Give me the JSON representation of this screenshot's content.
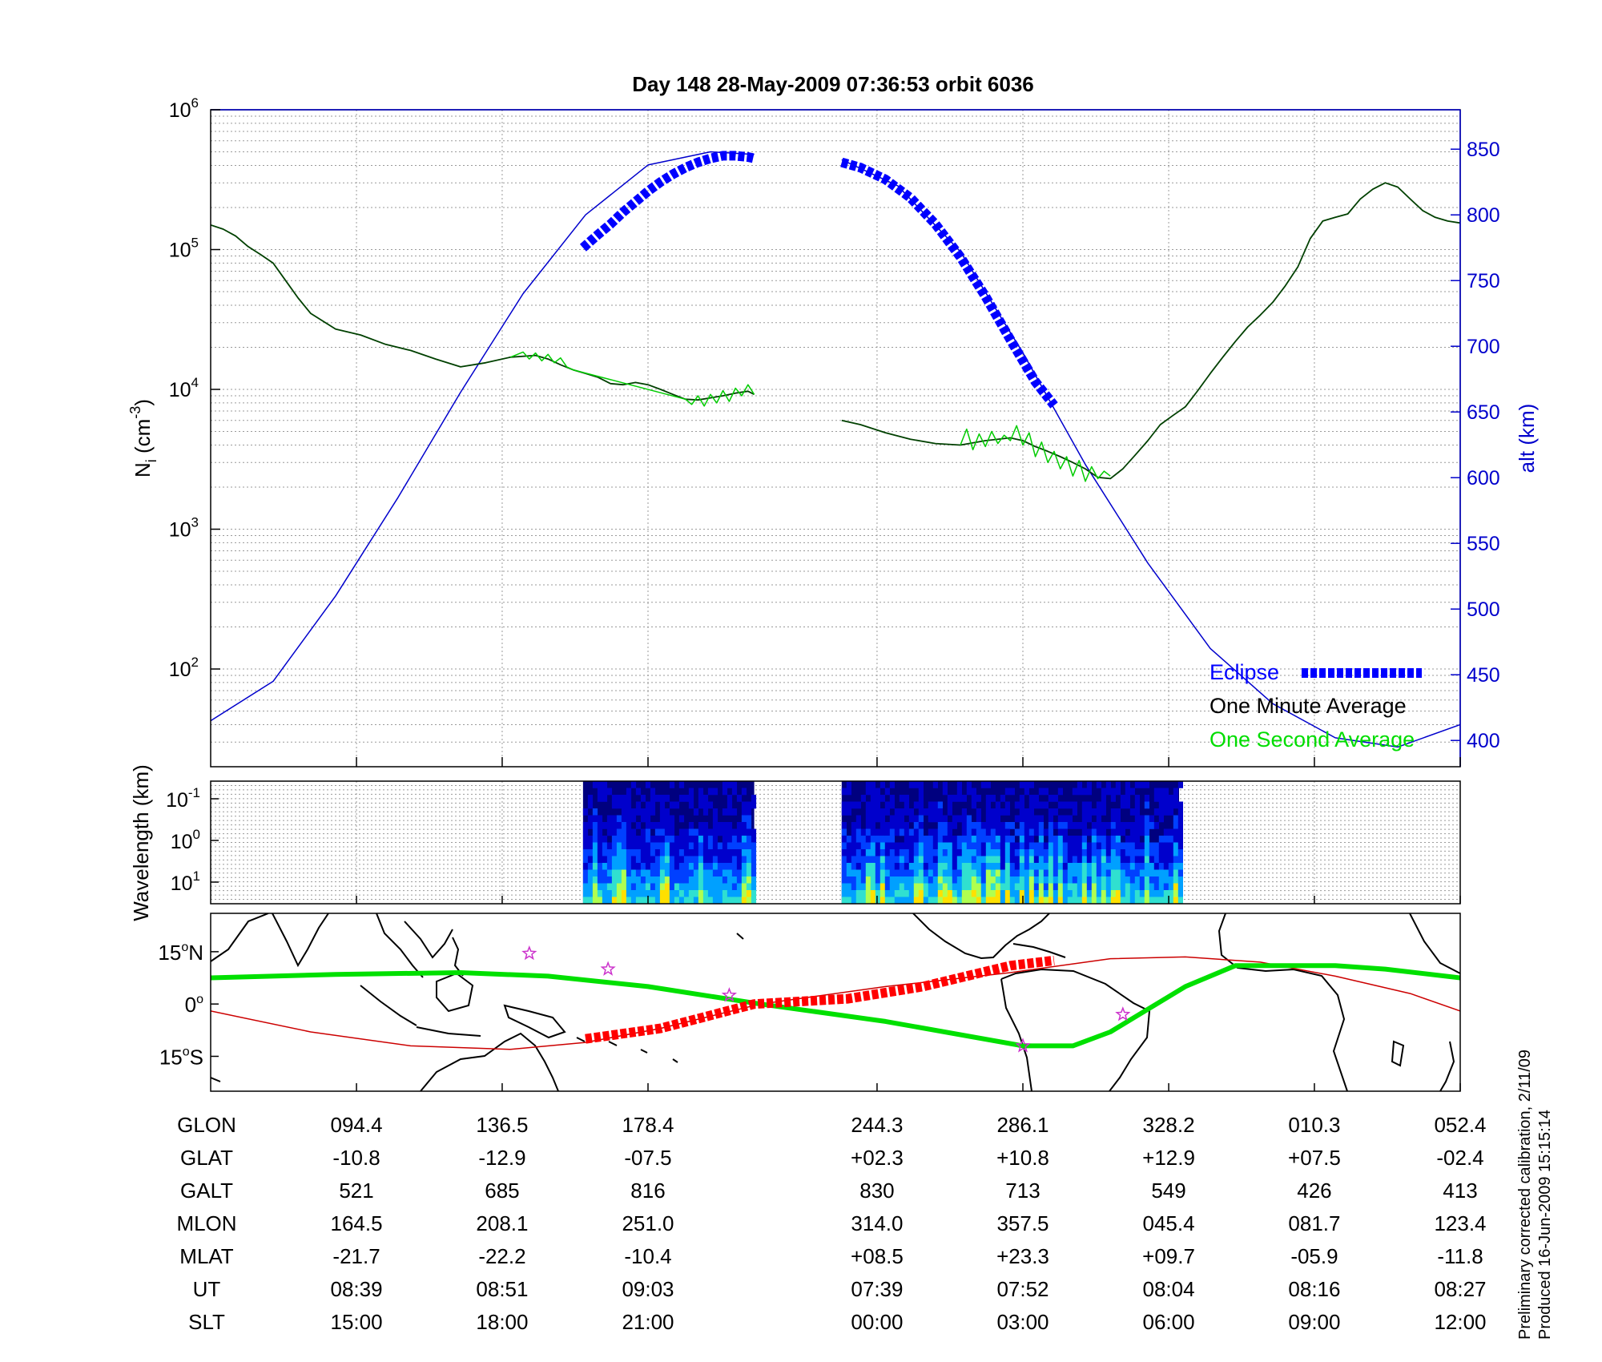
{
  "title": "Day 148  28-May-2009 07:36:53   orbit 6036",
  "side_note": {
    "line1": "Preliminary corrected calibration, 2/11/09",
    "line2": "Produced 16-Jun-2009 15:15:14"
  },
  "colors": {
    "altitude": "#0000cc",
    "eclipse": "#0000ff",
    "one_minute": "#004000",
    "one_second": "#00cc00",
    "orbit_track": "#00e000",
    "magnetic_equator": "#cc0000",
    "eclipse_track": "#ff0000",
    "stars": "#cc33cc"
  },
  "chart_data": [
    {
      "type": "line",
      "id": "density",
      "ylabel": "N_i (cm^-3)",
      "ylabel_main": "N",
      "ylabel_sub": "i",
      "ylabel_open": " (cm",
      "ylabel_sup": "-3",
      "ylabel_close": ")",
      "y_scale": "log",
      "ylim": [
        20,
        1000000
      ],
      "y_ticks": [
        {
          "value": 100,
          "base": "10",
          "exp": "2"
        },
        {
          "value": 1000,
          "base": "10",
          "exp": "3"
        },
        {
          "value": 10000,
          "base": "10",
          "exp": "4"
        },
        {
          "value": 100000,
          "base": "10",
          "exp": "5"
        },
        {
          "value": 1000000,
          "base": "10",
          "exp": "6"
        }
      ],
      "y2label": "alt (km)",
      "y2lim": [
        380,
        880
      ],
      "y2_ticks": [
        "400",
        "450",
        "500",
        "550",
        "600",
        "650",
        "700",
        "750",
        "800",
        "850"
      ],
      "xlim": [
        0,
        100
      ],
      "x_ticks": [
        11.67,
        23.33,
        35,
        53.33,
        65,
        76.67,
        88.33,
        100
      ],
      "grid": true,
      "legend_position": "bottom-right",
      "legend": [
        {
          "label": "Eclipse"
        },
        {
          "label": "One Minute Average"
        },
        {
          "label": "One Second Average"
        }
      ],
      "series": [
        {
          "name": "One Minute Average",
          "axis": "left",
          "segments": [
            {
              "x": [
                0,
                1,
                2,
                3,
                4,
                5,
                6,
                7,
                8,
                10,
                12,
                14,
                16,
                18,
                20,
                22,
                24,
                26,
                27,
                28,
                29,
                30,
                31,
                32,
                33,
                34,
                35,
                36,
                37,
                38,
                39,
                40,
                41,
                42,
                43,
                43.5
              ],
              "y": [
                150000,
                140000,
                125000,
                105000,
                92000,
                80000,
                60000,
                45000,
                35000,
                27000,
                24500,
                21000,
                19000,
                16500,
                14500,
                15500,
                17000,
                17500,
                16500,
                15000,
                13800,
                13000,
                12200,
                11000,
                10800,
                11200,
                10800,
                10000,
                9200,
                8500,
                8400,
                8700,
                9000,
                9400,
                9700,
                9200
              ]
            },
            {
              "x": [
                50.5,
                52,
                54,
                56,
                58,
                60,
                62,
                64,
                65,
                66,
                67,
                68,
                69,
                70,
                71,
                72,
                73,
                74,
                75,
                76,
                77,
                78,
                79,
                80,
                81,
                82,
                83,
                84,
                85,
                86,
                87,
                88,
                89,
                90,
                91,
                92,
                93,
                94,
                95,
                96,
                97,
                98,
                99,
                100
              ],
              "y": [
                6000,
                5600,
                4900,
                4400,
                4100,
                4000,
                4300,
                4500,
                4300,
                3900,
                3600,
                3300,
                3000,
                2700,
                2350,
                2300,
                2700,
                3400,
                4300,
                5600,
                6500,
                7500,
                9800,
                13000,
                17000,
                22000,
                28000,
                34000,
                42000,
                55000,
                75000,
                120000,
                160000,
                170000,
                180000,
                230000,
                270000,
                300000,
                280000,
                230000,
                190000,
                170000,
                160000,
                155000
              ]
            }
          ]
        },
        {
          "name": "One Second Average",
          "axis": "left",
          "segments": [
            {
              "x": [
                24,
                25,
                25.5,
                26,
                26.5,
                27,
                27.5,
                28,
                28.5,
                29,
                38,
                38.5,
                39,
                39.5,
                40,
                40.5,
                41,
                41.5,
                42,
                42.5,
                43,
                43.5
              ],
              "y": [
                17000,
                18500,
                16500,
                18200,
                16000,
                17800,
                15500,
                16800,
                14500,
                13800,
                8500,
                7800,
                9000,
                7600,
                9200,
                8000,
                9800,
                8200,
                10200,
                9000,
                10800,
                9200
              ]
            },
            {
              "x": [
                60,
                60.5,
                61,
                61.5,
                62,
                62.5,
                63,
                63.5,
                64,
                64.5,
                65,
                65.5,
                66,
                66.5,
                67,
                67.5,
                68,
                68.5,
                69,
                69.5,
                70,
                70.5,
                71,
                71.5,
                72
              ],
              "y": [
                4000,
                5200,
                3700,
                4800,
                3900,
                5000,
                4100,
                4700,
                4300,
                5500,
                4000,
                4900,
                3300,
                4200,
                3000,
                3600,
                2700,
                3300,
                2400,
                3100,
                2200,
                2800,
                2300,
                2600,
                2400
              ]
            }
          ]
        },
        {
          "name": "Altitude",
          "axis": "right",
          "segments": [
            {
              "x": [
                0,
                5,
                10,
                15,
                20,
                25,
                30,
                35,
                40,
                43.5
              ],
              "y": [
                415,
                445,
                510,
                585,
                665,
                740,
                800,
                838,
                848,
                846
              ]
            },
            {
              "x": [
                50.5,
                55,
                60,
                65,
                70,
                75,
                80,
                85,
                90,
                95,
                100
              ],
              "y": [
                842,
                822,
                772,
                695,
                610,
                535,
                470,
                428,
                402,
                395,
                412
              ]
            }
          ]
        },
        {
          "name": "Eclipse",
          "axis": "right",
          "segments": [
            {
              "x": [
                29.8,
                31,
                32,
                33,
                34,
                35,
                36,
                37,
                38,
                39,
                40,
                41,
                42,
                43,
                43.5
              ],
              "y": [
                775,
                785,
                793,
                802,
                810,
                818,
                825,
                831,
                836,
                840,
                843,
                845,
                845,
                844,
                843
              ]
            },
            {
              "x": [
                50.5,
                52,
                54,
                56,
                58,
                60,
                62,
                64,
                66,
                67.5
              ],
              "y": [
                840,
                836,
                827,
                813,
                793,
                768,
                738,
                705,
                673,
                655
              ]
            }
          ]
        }
      ]
    },
    {
      "type": "heatmap",
      "id": "spectrogram",
      "ylabel": "Wavelength (km)",
      "y_scale": "log",
      "y_ticks": [
        {
          "base": "10",
          "exp": "-1"
        },
        {
          "base": "10",
          "exp": "0"
        },
        {
          "base": "10",
          "exp": "1"
        }
      ],
      "xlim": [
        0,
        100
      ],
      "data_spans": [
        [
          29.8,
          43.5
        ],
        [
          50.5,
          77.5
        ]
      ],
      "colormap": [
        "#00007f",
        "#0000cc",
        "#0040ff",
        "#00a0ff",
        "#30e0d0",
        "#b0ff50",
        "#ffe000"
      ]
    },
    {
      "type": "line",
      "id": "ground_track",
      "ylabel_ticks": [
        {
          "value": 15,
          "label_num": "15",
          "label_hemi": "N"
        },
        {
          "value": 0,
          "label_num": "0",
          "label_hemi": ""
        },
        {
          "value": -15,
          "label_num": "15",
          "label_hemi": "S"
        }
      ],
      "ylim": [
        -25,
        26
      ],
      "xlim": [
        0,
        100
      ],
      "series": [
        {
          "name": "orbit_track",
          "x": [
            0,
            10,
            20,
            27,
            35,
            44,
            54,
            65,
            69,
            72,
            78,
            82,
            87,
            90,
            94,
            100
          ],
          "y": [
            7.5,
            8.5,
            9,
            8,
            5,
            0,
            -5,
            -12,
            -12,
            -8,
            5,
            11,
            11,
            11,
            10,
            7.5
          ]
        },
        {
          "name": "magnetic_equator",
          "x": [
            0,
            8,
            16,
            24,
            30,
            36,
            44,
            54,
            64,
            72,
            78,
            84,
            90,
            96,
            100
          ],
          "y": [
            -2,
            -8,
            -12,
            -13,
            -11,
            -7,
            0,
            5,
            9,
            13,
            13.5,
            12,
            8,
            3,
            -2
          ]
        },
        {
          "name": "eclipse_track",
          "x": [
            30,
            36,
            43.5,
            51,
            57,
            64,
            67.5
          ],
          "y": [
            -10,
            -7,
            0,
            1.5,
            5,
            11,
            12.5
          ]
        }
      ],
      "stars": [
        {
          "x": 25.5,
          "y": 14.5
        },
        {
          "x": 31.8,
          "y": 10
        },
        {
          "x": 41.5,
          "y": 2.5
        },
        {
          "x": 65,
          "y": -12
        },
        {
          "x": 73,
          "y": -3
        }
      ]
    },
    {
      "type": "table",
      "id": "ephemeris",
      "row_labels": [
        "GLON",
        "GLAT",
        "GALT",
        "MLON",
        "MLAT",
        "UT",
        "SLT"
      ],
      "columns": [
        {
          "x": 11.67,
          "values": [
            "094.4",
            "-10.8",
            "521",
            "164.5",
            "-21.7",
            "08:39",
            "15:00"
          ]
        },
        {
          "x": 23.33,
          "values": [
            "136.5",
            "-12.9",
            "685",
            "208.1",
            "-22.2",
            "08:51",
            "18:00"
          ]
        },
        {
          "x": 35,
          "values": [
            "178.4",
            "-07.5",
            "816",
            "251.0",
            "-10.4",
            "09:03",
            "21:00"
          ]
        },
        {
          "x": 53.33,
          "values": [
            "244.3",
            "+02.3",
            "830",
            "314.0",
            "+08.5",
            "07:39",
            "00:00"
          ]
        },
        {
          "x": 65,
          "values": [
            "286.1",
            "+10.8",
            "713",
            "357.5",
            "+23.3",
            "07:52",
            "03:00"
          ]
        },
        {
          "x": 76.67,
          "values": [
            "328.2",
            "+12.9",
            "549",
            "045.4",
            "+09.7",
            "08:04",
            "06:00"
          ]
        },
        {
          "x": 88.33,
          "values": [
            "010.3",
            "+07.5",
            "426",
            "081.7",
            "-05.9",
            "08:16",
            "09:00"
          ]
        },
        {
          "x": 100,
          "values": [
            "052.4",
            "-02.4",
            "413",
            "123.4",
            "-11.8",
            "08:27",
            "12:00"
          ]
        }
      ]
    }
  ]
}
